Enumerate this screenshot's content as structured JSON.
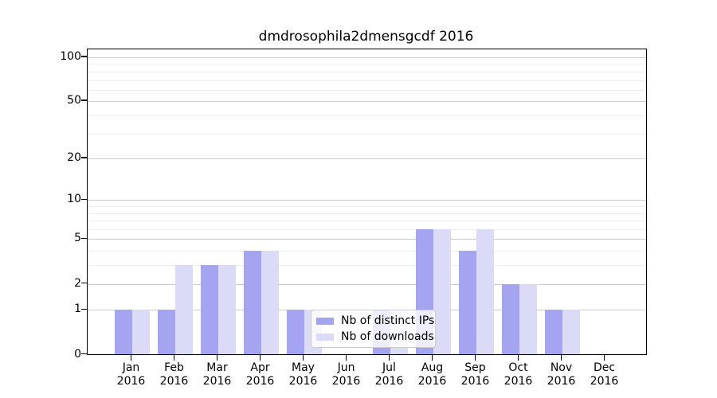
{
  "title": "dmdrosophila2dmensgcdf 2016",
  "colors": {
    "distinct_ips": "#a4a4f1",
    "downloads": "#dbdbf8",
    "grid_major": "#cccccc",
    "grid_minor": "#eeeeee",
    "spine": "#000000",
    "text": "#000000",
    "legend_border": "#cccccc"
  },
  "legend": {
    "items": [
      {
        "label": "Nb of distinct IPs",
        "color_key": "distinct_ips"
      },
      {
        "label": "Nb of downloads",
        "color_key": "downloads"
      }
    ]
  },
  "chart_data": {
    "type": "bar",
    "title": "dmdrosophila2dmensgcdf 2016",
    "categories": [
      "Jan 2016",
      "Feb 2016",
      "Mar 2016",
      "Apr 2016",
      "May 2016",
      "Jun 2016",
      "Jul 2016",
      "Aug 2016",
      "Sep 2016",
      "Oct 2016",
      "Nov 2016",
      "Dec 2016"
    ],
    "series": [
      {
        "name": "Nb of distinct IPs",
        "color_key": "distinct_ips",
        "values": [
          1,
          1,
          3,
          4,
          1,
          0,
          1,
          6,
          4,
          2,
          1,
          0
        ]
      },
      {
        "name": "Nb of downloads",
        "color_key": "downloads",
        "values": [
          1,
          3,
          3,
          4,
          1,
          0,
          1,
          6,
          6,
          2,
          1,
          0
        ]
      }
    ],
    "xlabel": "",
    "ylabel": "",
    "yscale": "log1p",
    "ylim": [
      0,
      113
    ],
    "yticks": [
      0,
      1,
      2,
      5,
      10,
      20,
      50,
      100
    ],
    "minor_yticks": [
      3,
      4,
      6,
      7,
      8,
      9,
      30,
      40,
      60,
      70,
      80,
      90
    ],
    "grid": "on",
    "legend_position": "lower center inside"
  }
}
